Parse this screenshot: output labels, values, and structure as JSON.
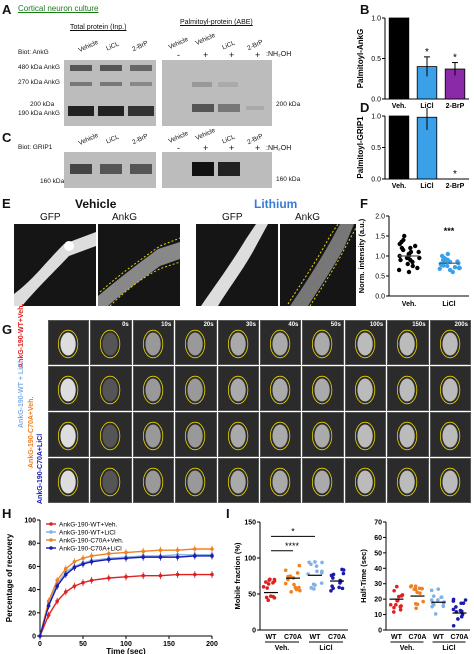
{
  "panel_letters": {
    "a": "A",
    "b": "B",
    "c": "C",
    "d": "D",
    "e": "E",
    "f": "F",
    "g": "G",
    "h": "H",
    "i": "I"
  },
  "panelA": {
    "title": "Cortical neuron culture",
    "total_protein": "Total protein (Inp.)",
    "palmitoyl": "Palmitoyl-protein (ABE)",
    "biot": "Biot: AnkG",
    "lanes_left": [
      "Vehicle",
      "LiCL",
      "2-BrP"
    ],
    "lanes_right": [
      "Vehicle",
      "Vehicle",
      "LiCL",
      "2-BrP"
    ],
    "nh2oh": ":NH₂OH",
    "signs": [
      "-",
      "+",
      "+",
      "+"
    ],
    "mw_left": [
      "480 kDa AnkG",
      "270 kDa AnkG",
      "200 kDa",
      "190 kDa AnkG"
    ],
    "mw_right": "200 kDa"
  },
  "panelC": {
    "biot": "Biot: GRIP1",
    "lanes_left": [
      "Vehicle",
      "LiCL",
      "2-BrP"
    ],
    "lanes_right": [
      "Vehicle",
      "Vehicle",
      "LiCL",
      "2-BrP"
    ],
    "nh2oh": ":NH₂OH",
    "signs": [
      "-",
      "+",
      "+",
      "+"
    ],
    "mw_left": "160 kDa",
    "mw_right": "160 kDa"
  },
  "panelE": {
    "vehicle": "Vehicle",
    "lithium": "Lithium",
    "gfp": "GFP",
    "ankg": "AnkG",
    "lithium_color": "#3a7bd5"
  },
  "panelG": {
    "row_labels": [
      "AnkG-190-WT+Veh.",
      "AnkG-190-WT + LiCl",
      "AnkG-190-C70A+Veh.",
      "AnkG-190-C70A+LiCl"
    ],
    "row_colors": [
      "#e02020",
      "#7fb0e8",
      "#f08020",
      "#1a1ab0"
    ],
    "timestamps": [
      "0s",
      "10s",
      "20s",
      "30s",
      "40s",
      "50s",
      "100s",
      "150s",
      "200s"
    ]
  },
  "chart_data": [
    {
      "type": "bar",
      "panel": "B",
      "ylabel": "Palmitoyl-AnkG",
      "categories": [
        "Veh.",
        "LiCl",
        "2-BrP"
      ],
      "values": [
        1.0,
        0.4,
        0.37
      ],
      "errors": [
        0,
        0.12,
        0.08
      ],
      "colors": [
        "#000000",
        "#3aa0e8",
        "#8a2aa8"
      ],
      "significance": [
        "",
        "*",
        "*"
      ],
      "ylim": [
        0,
        1.0
      ],
      "yticks": [
        "0.0",
        "0.5",
        "1.0"
      ]
    },
    {
      "type": "bar",
      "panel": "D",
      "ylabel": "Palmitoyl-GRIP1",
      "categories": [
        "Veh.",
        "LiCl",
        "2-BrP"
      ],
      "values": [
        1.0,
        0.98,
        0.0
      ],
      "errors": [
        0,
        0.2,
        0
      ],
      "colors": [
        "#000000",
        "#3aa0e8",
        "#8a2aa8"
      ],
      "significance": [
        "",
        "",
        "*"
      ],
      "ylim": [
        0,
        1.0
      ],
      "yticks": [
        "0.0",
        "0.5",
        "1.0"
      ]
    },
    {
      "type": "scatter",
      "panel": "F",
      "ylabel": "Norm. intensity (a.u.)",
      "categories": [
        "Veh.",
        "LiCl"
      ],
      "series": [
        {
          "values": [
            1.0,
            1.2,
            0.9,
            1.4,
            0.8,
            1.05,
            1.3,
            0.7,
            1.1,
            0.95,
            1.5,
            1.25,
            0.85,
            1.0,
            0.6,
            1.15,
            0.75,
            1.35,
            0.9,
            1.05,
            1.2,
            0.65,
            1.1,
            0.95
          ],
          "mean": 1.0,
          "sem": 0.05
        },
        {
          "values": [
            0.8,
            0.9,
            0.7,
            1.0,
            0.75,
            0.85,
            0.6,
            0.95,
            0.8,
            0.7,
            1.05,
            0.9,
            0.65,
            0.85,
            0.78,
            0.72,
            0.88,
            0.92,
            0.68,
            0.82,
            0.76,
            0.86
          ],
          "mean": 0.82,
          "sem": 0.03
        }
      ],
      "colors": [
        "#000000",
        "#3aa0e8"
      ],
      "significance": "***",
      "ylim": [
        0,
        2.0
      ],
      "yticks": [
        "0.0",
        "0.5",
        "1.0",
        "1.5",
        "2.0"
      ]
    },
    {
      "type": "line",
      "panel": "H",
      "xlabel": "Time (sec)",
      "ylabel": "Percentage of recovery",
      "x": [
        0,
        10,
        20,
        30,
        40,
        50,
        60,
        80,
        100,
        120,
        140,
        160,
        180,
        200
      ],
      "xlim": [
        0,
        200
      ],
      "ylim": [
        0,
        100
      ],
      "xticks": [
        "0",
        "50",
        "100",
        "150",
        "200"
      ],
      "yticks": [
        "0",
        "20",
        "40",
        "60",
        "80",
        "100"
      ],
      "series": [
        {
          "name": "AnkG-190-WT+Veh.",
          "color": "#e02020",
          "values": [
            0,
            18,
            30,
            38,
            43,
            46,
            48,
            50,
            51,
            52,
            52,
            53,
            53,
            53
          ]
        },
        {
          "name": "AnkG-190-WT+LiCl",
          "color": "#7fb0e8",
          "values": [
            0,
            28,
            45,
            55,
            60,
            63,
            65,
            67,
            68,
            69,
            69,
            70,
            70,
            70
          ]
        },
        {
          "name": "AnkG-190-C70A+Veh.",
          "color": "#f08020",
          "values": [
            0,
            30,
            48,
            58,
            64,
            67,
            69,
            71,
            72,
            73,
            74,
            74,
            75,
            75
          ]
        },
        {
          "name": "AnkG-190-C70A+LiCl",
          "color": "#1a1ab0",
          "values": [
            0,
            26,
            43,
            53,
            59,
            62,
            64,
            66,
            67,
            68,
            68,
            68,
            69,
            69
          ]
        }
      ]
    },
    {
      "type": "scatter",
      "panel": "I-left",
      "ylabel": "Mobile fraction (%)",
      "categories": [
        "WT",
        "C70A",
        "WT",
        "C70A"
      ],
      "groups": [
        "Veh.",
        "LiCl"
      ],
      "means": [
        52,
        72,
        76,
        68
      ],
      "colors": [
        "#e02020",
        "#f08020",
        "#7fb0e8",
        "#1a1ab0"
      ],
      "significance": [
        "*",
        "****"
      ],
      "ylim": [
        0,
        150
      ],
      "yticks": [
        "0",
        "50",
        "100",
        "150"
      ]
    },
    {
      "type": "scatter",
      "panel": "I-right",
      "ylabel": "Half-Time (sec)",
      "categories": [
        "WT",
        "C70A",
        "WT",
        "C70A"
      ],
      "groups": [
        "Veh.",
        "LiCl"
      ],
      "means": [
        20,
        22,
        18,
        11
      ],
      "colors": [
        "#e02020",
        "#f08020",
        "#7fb0e8",
        "#1a1ab0"
      ],
      "ylim": [
        0,
        70
      ],
      "yticks": [
        "0",
        "10",
        "20",
        "30",
        "40",
        "50",
        "60",
        "70"
      ]
    }
  ]
}
